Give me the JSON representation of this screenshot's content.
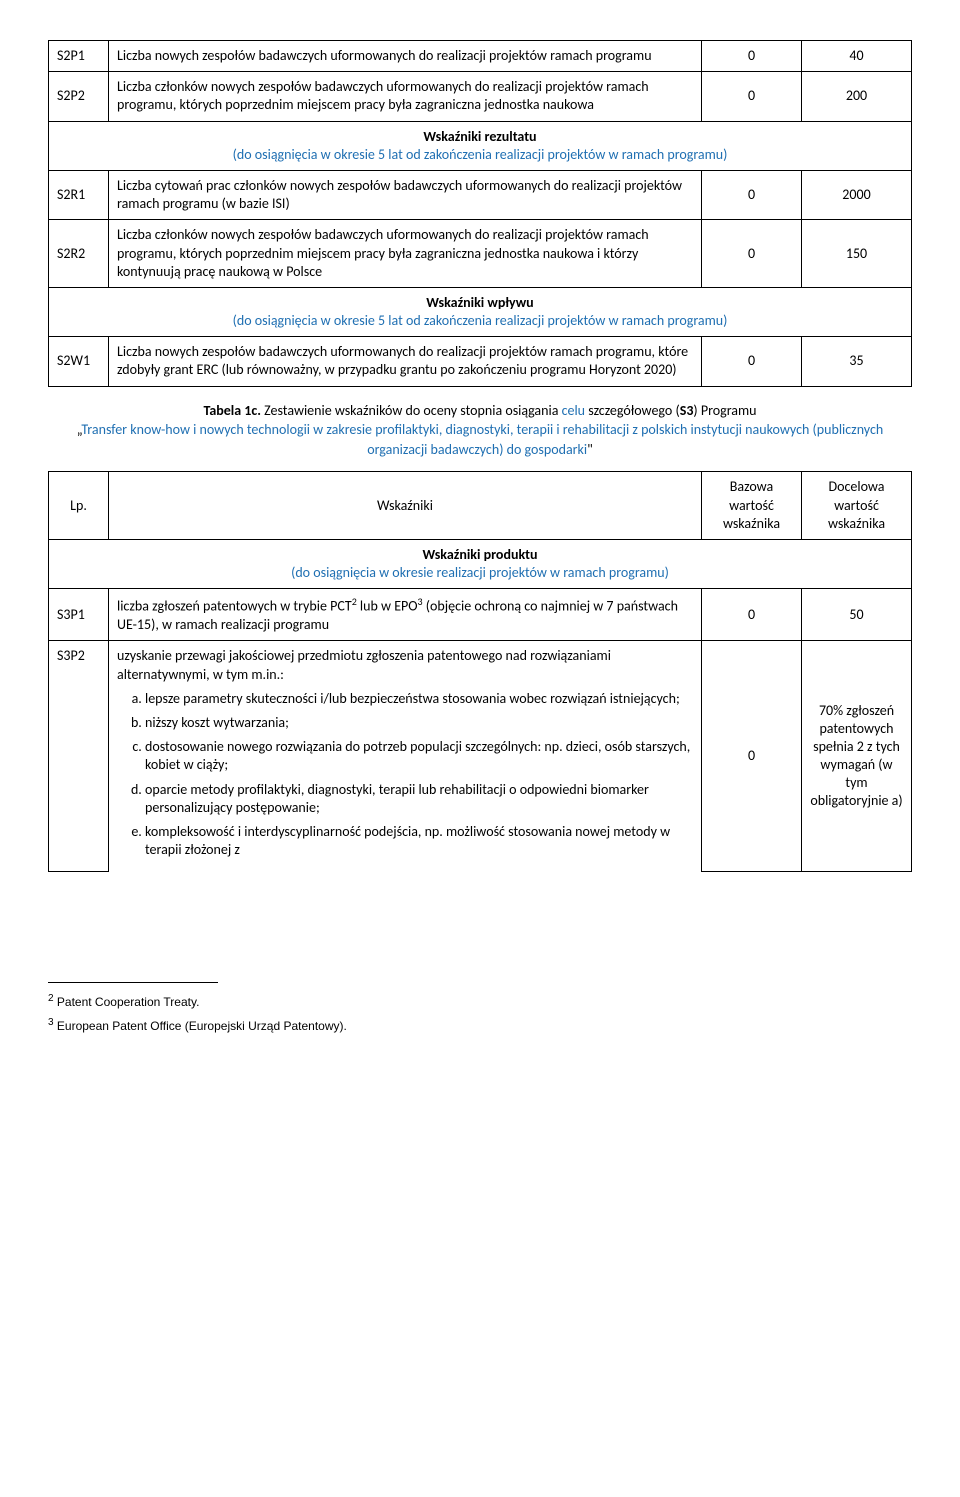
{
  "table1": {
    "rows": [
      {
        "code": "S2P1",
        "desc": "Liczba nowych zespołów badawczych uformowanych do realizacji projektów ramach programu",
        "v1": "0",
        "v2": "40"
      },
      {
        "code": "S2P2",
        "desc": "Liczba członków nowych zespołów badawczych uformowanych do realizacji projektów ramach programu, których poprzednim miejscem pracy była zagraniczna jednostka naukowa",
        "v1": "0",
        "v2": "200"
      }
    ],
    "sec1_title": "Wskaźniki rezultatu",
    "sec1_sub": "(do osiągnięcia w okresie 5 lat od zakończenia realizacji projektów w ramach programu)",
    "rows2": [
      {
        "code": "S2R1",
        "desc": "Liczba cytowań prac członków nowych zespołów badawczych uformowanych do realizacji projektów ramach programu (w bazie ISI)",
        "v1": "0",
        "v2": "2000"
      },
      {
        "code": "S2R2",
        "desc": "Liczba członków nowych zespołów badawczych uformowanych do realizacji projektów ramach programu, których poprzednim miejscem pracy była zagraniczna jednostka naukowa i którzy kontynuują pracę naukową w Polsce",
        "v1": "0",
        "v2": "150"
      }
    ],
    "sec2_title": "Wskaźniki wpływu",
    "sec2_sub": "(do osiągnięcia w okresie 5 lat od zakończenia realizacji projektów w ramach programu)",
    "rows3": [
      {
        "code": "S2W1",
        "desc": "Liczba nowych zespołów badawczych uformowanych do realizacji projektów ramach programu, które zdobyły grant ERC (lub równoważny, w przypadku grantu po zakończeniu programu Horyzont 2020)",
        "v1": "0",
        "v2": "35"
      }
    ]
  },
  "caption": {
    "lead_bold": "Tabela 1c.",
    "lead_text": " Zestawienie wskaźników do oceny stopnia osiągania ",
    "blue1": "celu",
    "mid1": " szczegółowego (",
    "bold_s3": "S3",
    "mid2": ") Programu ",
    "quote_open": "„",
    "blue2": "Transfer know-how i nowych technologii w zakresie profilaktyki, diagnostyki, terapii i rehabilitacji z polskich instytucji naukowych (publicznych organizacji badawczych) do gospodarki",
    "quote_close": "\""
  },
  "table2": {
    "head_lp": "Lp.",
    "head_w": "Wskaźniki",
    "head_v1": "Bazowa wartość wskaźnika",
    "head_v2": "Docelowa wartość wskaźnika",
    "sec_title": "Wskaźniki produktu",
    "sec_sub": "(do osiągnięcia w okresie realizacji projektów w ramach programu)",
    "r1_code": "S3P1",
    "r1_desc_a": "liczba zgłoszeń patentowych w trybie PCT",
    "r1_desc_b": " lub w EPO",
    "r1_desc_c": " (objęcie ochroną co najmniej w 7 państwach UE-15), w  ramach realizacji programu",
    "r1_v1": "0",
    "r1_v2": "50",
    "r2_code": "S3P2",
    "r2_intro": "uzyskanie przewagi jakościowej przedmiotu zgłoszenia patentowego nad rozwiązaniami alternatywnymi, w tym m.in.:",
    "r2_items": [
      "lepsze parametry skuteczności i/lub bezpieczeństwa stosowania wobec rozwiązań istniejących;",
      "niższy koszt wytwarzania;",
      "dostosowanie nowego rozwiązania do potrzeb populacji szczególnych: np. dzieci, osób starszych, kobiet w ciąży;",
      "oparcie metody profilaktyki, diagnostyki, terapii lub rehabilitacji  o odpowiedni biomarker personalizujący postępowanie;",
      "kompleksowość i interdyscyplinarność podejścia, np. możliwość stosowania nowej metody w terapii złożonej z"
    ],
    "r2_v1": "0",
    "r2_v2": "70% zgłoszeń patentowych spełnia 2 z tych wymagań (w tym obligatoryjnie a)"
  },
  "footnotes": {
    "f2_num": "2",
    "f2_text": " Patent Cooperation Treaty.",
    "f3_num": "3",
    "f3_text": " European Patent Office (Europejski Urząd Patentowy)."
  }
}
